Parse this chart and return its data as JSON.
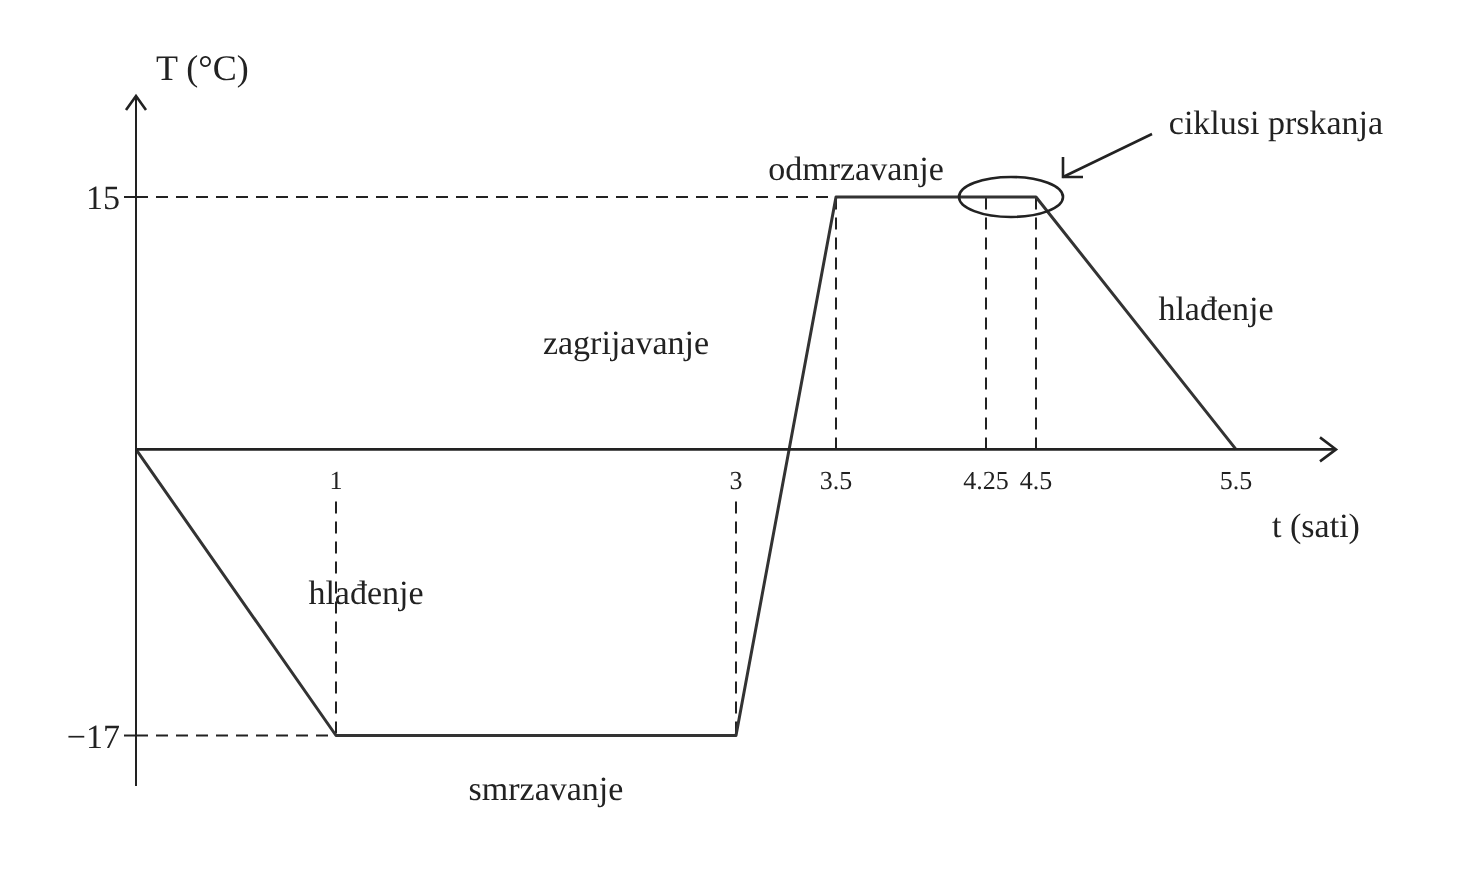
{
  "chart_data": {
    "type": "line",
    "xlabel": "t (sati)",
    "ylabel": "T (°C)",
    "x": [
      0,
      1,
      3,
      3.5,
      4.5,
      5.5
    ],
    "series": [
      {
        "color": "#333333",
        "values": [
          0,
          -17,
          -17,
          15,
          15,
          0
        ]
      }
    ],
    "xlim": [
      0,
      6
    ],
    "ylim": [
      -20,
      21
    ],
    "xticks": [
      1,
      3,
      3.5,
      4.25,
      4.5,
      5.5
    ],
    "yticks": [
      {
        "value": -17,
        "label": "−17"
      },
      15
    ],
    "grid": false,
    "marker": "none",
    "line_style": "solid",
    "ref_lines": [
      {
        "axis": "x",
        "value": 1,
        "line_style": "dashed"
      },
      {
        "axis": "x",
        "value": 3,
        "line_style": "dashed"
      },
      {
        "axis": "x",
        "value": 3.5,
        "line_style": "dashed"
      },
      {
        "axis": "x",
        "value": 4.25,
        "line_style": "dashed"
      },
      {
        "axis": "x",
        "value": 4.5,
        "line_style": "dashed"
      },
      {
        "axis": "y",
        "value": 15,
        "line_style": "dashed"
      },
      {
        "axis": "y",
        "value": -17,
        "line_style": "dashed"
      }
    ],
    "annotations": [
      "hlađenje",
      "smrzavanje",
      "zagrijavanje",
      "odmrzavanje",
      "hlađenje",
      "ciklusi prskanja"
    ]
  }
}
